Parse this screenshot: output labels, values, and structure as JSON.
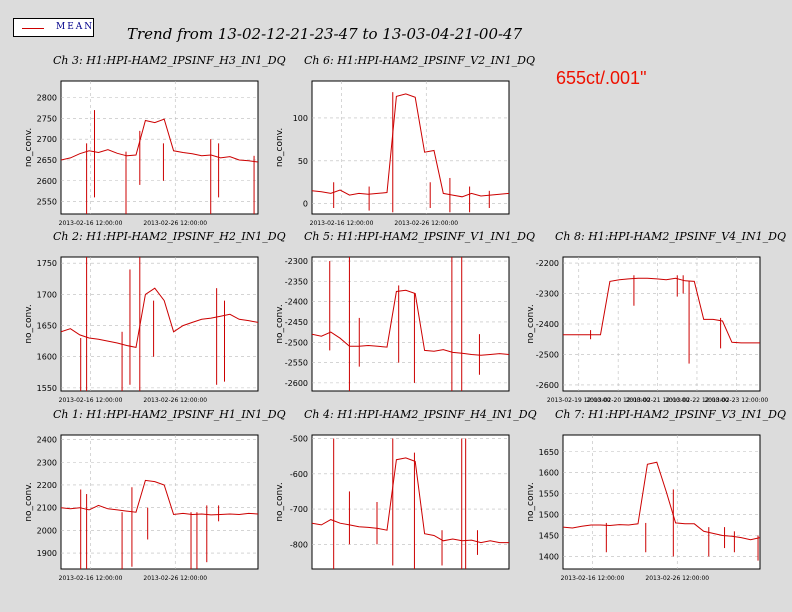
{
  "header": {
    "legend_label": "MEAN",
    "title": "Trend from 13-02-12-21-23-47 to 13-03-04-21-00-47",
    "annotation": "655ct/.001\""
  },
  "colors": {
    "trace": "#cc0000",
    "background": "#dcdcdc",
    "plot_bg": "#ffffff",
    "grid": "#bbbbbb",
    "annotation": "#ee1100"
  },
  "chart_data": [
    {
      "type": "line",
      "title": "Ch 3: H1:HPI-HAM2_IPSINF_H3_IN1_DQ",
      "ylabel": "no_conv.",
      "series": [
        {
          "name": "MEAN",
          "values": [
            2650,
            2655,
            2665,
            2672,
            2668,
            2675,
            2666,
            2660,
            2662,
            2745,
            2740,
            2748,
            2672,
            2668,
            2665,
            2660,
            2662,
            2655,
            2658,
            2650,
            2648,
            2645
          ]
        }
      ],
      "spikes": [
        {
          "x": 0.13,
          "lo": 2520,
          "hi": 2690
        },
        {
          "x": 0.17,
          "lo": 2560,
          "hi": 2770
        },
        {
          "x": 0.33,
          "lo": 2520,
          "hi": 2670
        },
        {
          "x": 0.4,
          "lo": 2590,
          "hi": 2720
        },
        {
          "x": 0.52,
          "lo": 2600,
          "hi": 2690
        },
        {
          "x": 0.76,
          "lo": 2520,
          "hi": 2700
        },
        {
          "x": 0.8,
          "lo": 2560,
          "hi": 2690
        },
        {
          "x": 0.98,
          "lo": 2520,
          "hi": 2660
        }
      ],
      "ylim": [
        2520,
        2840
      ],
      "yticks": [
        2550,
        2600,
        2650,
        2700,
        2750,
        2800
      ],
      "xtick_labels": [
        {
          "pos": 0.15,
          "label": "2013-02-16 12:00:00"
        },
        {
          "pos": 0.58,
          "label": "2013-02-26 12:00:00"
        }
      ],
      "grid": true
    },
    {
      "type": "line",
      "title": "Ch 6: H1:HPI-HAM2_IPSINF_V2_IN1_DQ",
      "ylabel": "no_conv.",
      "series": [
        {
          "name": "MEAN",
          "values": [
            15,
            14,
            12,
            16,
            10,
            12,
            11,
            12,
            13,
            125,
            128,
            124,
            60,
            62,
            12,
            10,
            8,
            12,
            9,
            10,
            11,
            12
          ]
        }
      ],
      "spikes": [
        {
          "x": 0.11,
          "lo": -5,
          "hi": 25
        },
        {
          "x": 0.29,
          "lo": -8,
          "hi": 20
        },
        {
          "x": 0.41,
          "lo": -10,
          "hi": 130
        },
        {
          "x": 0.6,
          "lo": -5,
          "hi": 25
        },
        {
          "x": 0.7,
          "lo": -10,
          "hi": 30
        },
        {
          "x": 0.8,
          "lo": -10,
          "hi": 20
        },
        {
          "x": 0.9,
          "lo": -5,
          "hi": 15
        }
      ],
      "ylim": [
        -12,
        143
      ],
      "yticks": [
        0,
        50,
        100
      ],
      "xtick_labels": [
        {
          "pos": 0.15,
          "label": "2013-02-16 12:00:00"
        },
        {
          "pos": 0.58,
          "label": "2013-02-26 12:00:00"
        }
      ],
      "grid": true
    },
    {
      "type": "line",
      "title": "Ch 2: H1:HPI-HAM2_IPSINF_H2_IN1_DQ",
      "ylabel": "no_conv.",
      "series": [
        {
          "name": "MEAN",
          "values": [
            1640,
            1645,
            1635,
            1630,
            1628,
            1625,
            1622,
            1618,
            1615,
            1700,
            1710,
            1690,
            1640,
            1650,
            1655,
            1660,
            1662,
            1665,
            1668,
            1660,
            1658,
            1655
          ]
        }
      ],
      "spikes": [
        {
          "x": 0.1,
          "lo": 1545,
          "hi": 1630
        },
        {
          "x": 0.13,
          "lo": 1545,
          "hi": 1760
        },
        {
          "x": 0.31,
          "lo": 1545,
          "hi": 1640
        },
        {
          "x": 0.35,
          "lo": 1555,
          "hi": 1740
        },
        {
          "x": 0.4,
          "lo": 1545,
          "hi": 1760
        },
        {
          "x": 0.47,
          "lo": 1600,
          "hi": 1690
        },
        {
          "x": 0.79,
          "lo": 1555,
          "hi": 1710
        },
        {
          "x": 0.83,
          "lo": 1560,
          "hi": 1690
        }
      ],
      "ylim": [
        1545,
        1760
      ],
      "yticks": [
        1550,
        1600,
        1650,
        1700,
        1750
      ],
      "xtick_labels": [
        {
          "pos": 0.15,
          "label": "2013-02-16 12:00:00"
        },
        {
          "pos": 0.58,
          "label": "2013-02-26 12:00:00"
        }
      ],
      "grid": true
    },
    {
      "type": "line",
      "title": "Ch 5: H1:HPI-HAM2_IPSINF_V1_IN1_DQ",
      "ylabel": "no_conv.",
      "series": [
        {
          "name": "MEAN",
          "values": [
            -2480,
            -2485,
            -2475,
            -2490,
            -2510,
            -2510,
            -2508,
            -2510,
            -2512,
            -2375,
            -2372,
            -2380,
            -2520,
            -2522,
            -2518,
            -2525,
            -2527,
            -2530,
            -2532,
            -2530,
            -2528,
            -2530
          ]
        }
      ],
      "spikes": [
        {
          "x": 0.09,
          "lo": -2520,
          "hi": -2300
        },
        {
          "x": 0.19,
          "lo": -2620,
          "hi": -2290
        },
        {
          "x": 0.24,
          "lo": -2560,
          "hi": -2440
        },
        {
          "x": 0.44,
          "lo": -2550,
          "hi": -2360
        },
        {
          "x": 0.52,
          "lo": -2600,
          "hi": -2380
        },
        {
          "x": 0.71,
          "lo": -2620,
          "hi": -2290
        },
        {
          "x": 0.76,
          "lo": -2620,
          "hi": -2290
        },
        {
          "x": 0.85,
          "lo": -2580,
          "hi": -2480
        }
      ],
      "ylim": [
        -2620,
        -2290
      ],
      "yticks": [
        -2600,
        -2550,
        -2500,
        -2450,
        -2400,
        -2350,
        -2300
      ],
      "xtick_labels": [],
      "grid": true
    },
    {
      "type": "line",
      "title": "Ch 8: H1:HPI-HAM2_IPSINF_V4_IN1_DQ",
      "ylabel": "no_conv.",
      "series": [
        {
          "name": "MEAN",
          "values": [
            -2435,
            -2435,
            -2435,
            -2435,
            -2435,
            -2260,
            -2255,
            -2252,
            -2250,
            -2250,
            -2252,
            -2255,
            -2250,
            -2258,
            -2260,
            -2385,
            -2385,
            -2390,
            -2460,
            -2462,
            -2462,
            -2462
          ]
        }
      ],
      "spikes": [
        {
          "x": 0.14,
          "lo": -2450,
          "hi": -2420
        },
        {
          "x": 0.36,
          "lo": -2340,
          "hi": -2240
        },
        {
          "x": 0.58,
          "lo": -2310,
          "hi": -2240
        },
        {
          "x": 0.61,
          "lo": -2300,
          "hi": -2240
        },
        {
          "x": 0.64,
          "lo": -2530,
          "hi": -2260
        },
        {
          "x": 0.8,
          "lo": -2480,
          "hi": -2380
        }
      ],
      "ylim": [
        -2620,
        -2180
      ],
      "yticks": [
        -2600,
        -2500,
        -2400,
        -2300,
        -2200
      ],
      "xtick_labels": [
        {
          "pos": 0.08,
          "label": "2013-02-19 12:00:00"
        },
        {
          "pos": 0.28,
          "label": "2013-02-20 12:00:00"
        },
        {
          "pos": 0.48,
          "label": "2013-02-21 12:00:00"
        },
        {
          "pos": 0.68,
          "label": "2013-02-22 12:00:00"
        },
        {
          "pos": 0.88,
          "label": "2013-02-23 12:00:00"
        }
      ],
      "grid": true
    },
    {
      "type": "line",
      "title": "Ch 1: H1:HPI-HAM2_IPSINF_H1_IN1_DQ",
      "ylabel": "no_conv.",
      "series": [
        {
          "name": "MEAN",
          "values": [
            2100,
            2095,
            2100,
            2090,
            2110,
            2095,
            2090,
            2085,
            2080,
            2220,
            2215,
            2200,
            2070,
            2075,
            2070,
            2072,
            2068,
            2070,
            2072,
            2070,
            2075,
            2072
          ]
        }
      ],
      "spikes": [
        {
          "x": 0.1,
          "lo": 1830,
          "hi": 2180
        },
        {
          "x": 0.13,
          "lo": 1830,
          "hi": 2160
        },
        {
          "x": 0.31,
          "lo": 1830,
          "hi": 2080
        },
        {
          "x": 0.36,
          "lo": 1840,
          "hi": 2190
        },
        {
          "x": 0.44,
          "lo": 1960,
          "hi": 2100
        },
        {
          "x": 0.66,
          "lo": 1830,
          "hi": 2080
        },
        {
          "x": 0.69,
          "lo": 1830,
          "hi": 2080
        },
        {
          "x": 0.74,
          "lo": 1860,
          "hi": 2110
        },
        {
          "x": 0.8,
          "lo": 2040,
          "hi": 2110
        }
      ],
      "ylim": [
        1830,
        2420
      ],
      "yticks": [
        1900,
        2000,
        2100,
        2200,
        2300,
        2400
      ],
      "xtick_labels": [
        {
          "pos": 0.15,
          "label": "2013-02-16 12:00:00"
        },
        {
          "pos": 0.58,
          "label": "2013-02-26 12:00:00"
        }
      ],
      "grid": true
    },
    {
      "type": "line",
      "title": "Ch 4: H1:HPI-HAM2_IPSINF_H4_IN1_DQ",
      "ylabel": "no_conv.",
      "series": [
        {
          "name": "MEAN",
          "values": [
            -740,
            -745,
            -730,
            -740,
            -745,
            -750,
            -752,
            -755,
            -760,
            -560,
            -555,
            -565,
            -770,
            -775,
            -790,
            -785,
            -790,
            -788,
            -795,
            -790,
            -795,
            -795
          ]
        }
      ],
      "spikes": [
        {
          "x": 0.11,
          "lo": -870,
          "hi": -500
        },
        {
          "x": 0.19,
          "lo": -800,
          "hi": -650
        },
        {
          "x": 0.33,
          "lo": -800,
          "hi": -680
        },
        {
          "x": 0.41,
          "lo": -860,
          "hi": -500
        },
        {
          "x": 0.52,
          "lo": -870,
          "hi": -540
        },
        {
          "x": 0.66,
          "lo": -860,
          "hi": -760
        },
        {
          "x": 0.76,
          "lo": -870,
          "hi": -500
        },
        {
          "x": 0.78,
          "lo": -870,
          "hi": -500
        },
        {
          "x": 0.84,
          "lo": -830,
          "hi": -760
        }
      ],
      "ylim": [
        -870,
        -490
      ],
      "yticks": [
        -800,
        -700,
        -600,
        -500
      ],
      "xtick_labels": [],
      "grid": true
    },
    {
      "type": "line",
      "title": "Ch 7: H1:HPI-HAM2_IPSINF_V3_IN1_DQ",
      "ylabel": "no_conv.",
      "series": [
        {
          "name": "MEAN",
          "values": [
            1470,
            1468,
            1472,
            1475,
            1475,
            1474,
            1476,
            1475,
            1478,
            1620,
            1625,
            1555,
            1480,
            1478,
            1478,
            1460,
            1455,
            1450,
            1448,
            1445,
            1440,
            1445
          ]
        }
      ],
      "spikes": [
        {
          "x": 0.22,
          "lo": 1410,
          "hi": 1480
        },
        {
          "x": 0.42,
          "lo": 1410,
          "hi": 1480
        },
        {
          "x": 0.56,
          "lo": 1400,
          "hi": 1560
        },
        {
          "x": 0.74,
          "lo": 1400,
          "hi": 1470
        },
        {
          "x": 0.82,
          "lo": 1420,
          "hi": 1470
        },
        {
          "x": 0.87,
          "lo": 1410,
          "hi": 1460
        },
        {
          "x": 0.99,
          "lo": 1390,
          "hi": 1450
        }
      ],
      "ylim": [
        1370,
        1690
      ],
      "yticks": [
        1400,
        1450,
        1500,
        1550,
        1600,
        1650
      ],
      "xtick_labels": [
        {
          "pos": 0.15,
          "label": "2013-02-16 12:00:00"
        },
        {
          "pos": 0.58,
          "label": "2013-02-26 12:00:00"
        }
      ],
      "grid": true
    }
  ]
}
